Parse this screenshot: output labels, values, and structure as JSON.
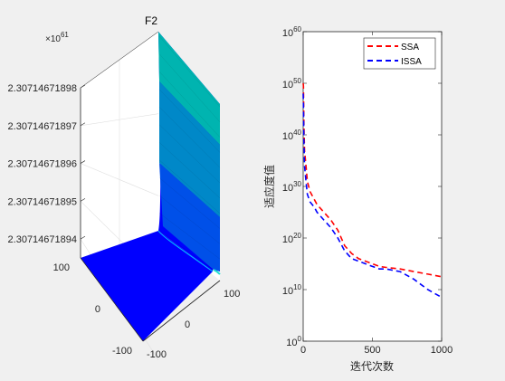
{
  "chart_data": [
    {
      "type": "surface",
      "title": "F2",
      "z_exponent_label": "×10",
      "z_exponent_power": "61",
      "z_ticks": [
        2.30714671894,
        2.30714671895,
        2.30714671896,
        2.30714671897,
        2.30714671898
      ],
      "z_tick_labels": [
        "2.30714671894",
        "2.30714671895",
        "2.30714671896",
        "2.30714671897",
        "2.30714671898"
      ],
      "x_ticks": [
        -100,
        0,
        100
      ],
      "y_ticks": [
        -100,
        0,
        100
      ],
      "x_tick_labels": [
        "-100",
        "0",
        "100"
      ],
      "y_tick_labels": [
        "-100",
        "0",
        "100"
      ],
      "grid": true,
      "colormap": [
        "#0000ff",
        "#0050e8",
        "#0088c8",
        "#00b4b0"
      ]
    },
    {
      "type": "line",
      "xlabel": "迭代次数",
      "ylabel": "适应度值",
      "xlim": [
        0,
        1000
      ],
      "ylim_exp": [
        0,
        60
      ],
      "y_scale": "log",
      "x_ticks": [
        0,
        500,
        1000
      ],
      "x_tick_labels": [
        "0",
        "500",
        "1000"
      ],
      "y_tick_exps": [
        0,
        10,
        20,
        30,
        40,
        50,
        60
      ],
      "y_tick_base": "10",
      "y_tick_powers": [
        "0",
        "10",
        "20",
        "30",
        "40",
        "50",
        "60"
      ],
      "legend_position": "top-right",
      "series": [
        {
          "name": "SSA",
          "color": "#ff0000",
          "style": "dashed",
          "x": [
            0,
            2,
            5,
            10,
            20,
            30,
            50,
            80,
            100,
            150,
            200,
            250,
            300,
            350,
            400,
            450,
            500,
            550,
            600,
            700,
            800,
            900,
            1000
          ],
          "log10_y": [
            50,
            49.5,
            42,
            37,
            34,
            31,
            29,
            27.5,
            26.5,
            25,
            23.5,
            21.5,
            18.5,
            17,
            16,
            15.5,
            15,
            14.5,
            14.3,
            14,
            13.5,
            13,
            12.5
          ]
        },
        {
          "name": "ISSA",
          "color": "#0000ff",
          "style": "dashed",
          "x": [
            0,
            2,
            5,
            10,
            20,
            30,
            50,
            80,
            100,
            150,
            200,
            250,
            300,
            350,
            400,
            450,
            500,
            550,
            600,
            700,
            800,
            900,
            1000
          ],
          "log10_y": [
            48,
            46,
            39,
            34,
            31,
            28.5,
            27,
            26,
            25,
            23.5,
            22,
            20,
            17.5,
            16,
            15.5,
            15,
            14.5,
            14,
            14,
            13.5,
            12,
            10,
            8.5
          ]
        }
      ]
    }
  ]
}
